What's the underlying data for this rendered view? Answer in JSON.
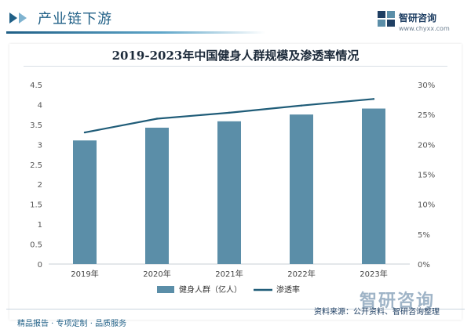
{
  "header": {
    "title": "产业链下游",
    "watermark": "智研咨询 Chyxx.com"
  },
  "brand": {
    "name": "智研咨询",
    "url": "www.chyxx.com",
    "watermark_text": "智研咨询"
  },
  "footer": {
    "left": "精品报告 · 专项定制 · 品质服务",
    "source": "资料来源：公开资料、智研咨询整理"
  },
  "colors": {
    "bar": "#5b8ea8",
    "line": "#1f5c78",
    "header": "#1f5f86"
  },
  "chart_data": {
    "type": "bar",
    "title": "2019-2023年中国健身人群规模及渗透率情况",
    "categories": [
      "2019年",
      "2020年",
      "2021年",
      "2022年",
      "2023年"
    ],
    "series": [
      {
        "name": "健身人群（亿人）",
        "type": "bar",
        "axis": "left",
        "values": [
          3.1,
          3.42,
          3.58,
          3.75,
          3.9
        ]
      },
      {
        "name": "渗透率",
        "type": "line",
        "axis": "right",
        "values": [
          22.0,
          24.3,
          25.3,
          26.5,
          27.6
        ]
      }
    ],
    "y_left": {
      "ylim": [
        0,
        4.5
      ],
      "ticks": [
        "0",
        "0.5",
        "1",
        "1.5",
        "2",
        "2.5",
        "3",
        "3.5",
        "4",
        "4.5"
      ]
    },
    "y_right": {
      "ylim": [
        0,
        30
      ],
      "ticks": [
        "0%",
        "5%",
        "10%",
        "15%",
        "20%",
        "25%",
        "30%"
      ]
    },
    "legend": "bottom-center",
    "grid": false
  }
}
